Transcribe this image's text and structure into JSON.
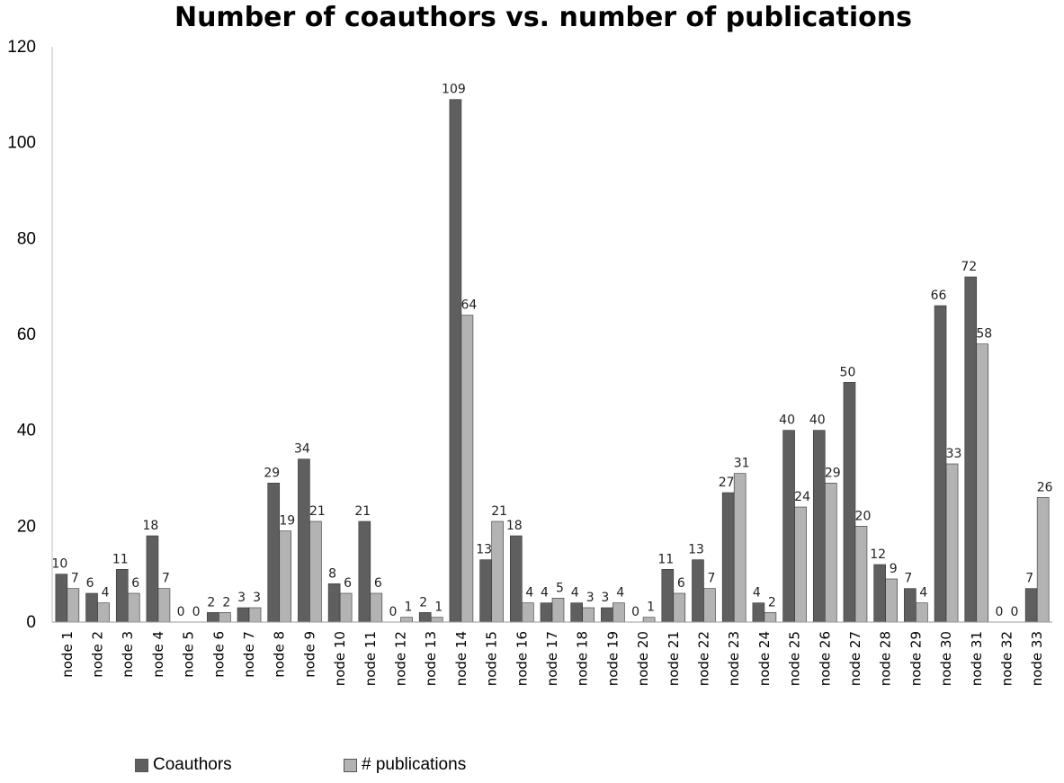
{
  "chart_data": {
    "type": "bar",
    "title": "Number of coauthors vs. number of publications",
    "xlabel": "",
    "ylabel": "",
    "ylim": [
      0,
      120
    ],
    "yticks": [
      0,
      20,
      40,
      60,
      80,
      100,
      120
    ],
    "grid": false,
    "legend_position": "bottom-left",
    "categories": [
      "node 1",
      "node 2",
      "node 3",
      "node 4",
      "node 5",
      "node 6",
      "node 7",
      "node 8",
      "node 9",
      "node 10",
      "node 11",
      "node 12",
      "node 13",
      "node 14",
      "node 15",
      "node 16",
      "node 17",
      "node 18",
      "node 19",
      "node 20",
      "node 21",
      "node 22",
      "node 23",
      "node 24",
      "node 25",
      "node 26",
      "node 27",
      "node 28",
      "node 29",
      "node 30",
      "node 31",
      "node 32",
      "node 33"
    ],
    "series": [
      {
        "name": "Coauthors",
        "color": "#5f5f5f",
        "values": [
          10,
          6,
          11,
          18,
          0,
          2,
          3,
          29,
          34,
          8,
          21,
          0,
          2,
          109,
          13,
          18,
          4,
          4,
          3,
          0,
          11,
          13,
          27,
          4,
          40,
          40,
          50,
          12,
          7,
          66,
          72,
          0,
          7
        ]
      },
      {
        "name": "# publications",
        "color": "#b3b3b3",
        "values": [
          7,
          4,
          6,
          7,
          0,
          2,
          3,
          19,
          21,
          6,
          6,
          1,
          1,
          64,
          21,
          4,
          5,
          3,
          4,
          1,
          6,
          7,
          31,
          2,
          24,
          29,
          20,
          9,
          4,
          33,
          58,
          0,
          26
        ]
      }
    ]
  }
}
